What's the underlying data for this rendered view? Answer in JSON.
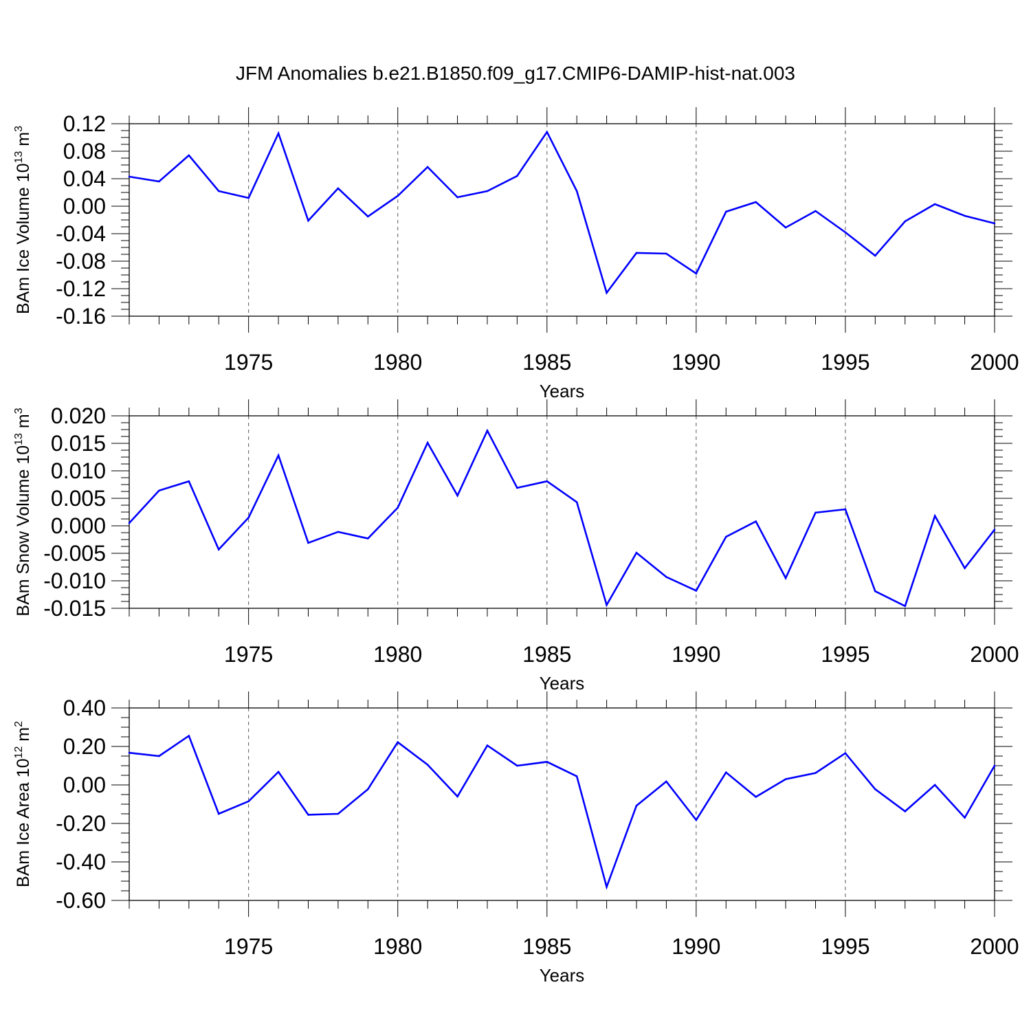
{
  "title": "JFM Anomalies b.e21.B1850.f09_g17.CMIP6-DAMIP-hist-nat.003",
  "colors": {
    "line": "#0000ff",
    "axis": "#000000",
    "grid": "#555555"
  },
  "chart_data": [
    {
      "type": "line",
      "ylabel": {
        "main": "BAm Ice Volume 10",
        "exp": "13",
        "unit": " m",
        "unit_exp": "3"
      },
      "xlabel": "Years",
      "xlim": [
        1971,
        2000
      ],
      "ylim": [
        -0.16,
        0.12
      ],
      "yticks": [
        "0.12",
        "0.08",
        "0.04",
        "0.00",
        "-0.04",
        "-0.08",
        "-0.12",
        "-0.16"
      ],
      "ytick_values": [
        0.12,
        0.08,
        0.04,
        0.0,
        -0.04,
        -0.08,
        -0.12,
        -0.16
      ],
      "xticks": [
        "1975",
        "1980",
        "1985",
        "1990",
        "1995",
        "2000"
      ],
      "xtick_values": [
        1975,
        1980,
        1985,
        1990,
        1995,
        2000
      ],
      "x": [
        1971,
        1972,
        1973,
        1974,
        1975,
        1976,
        1977,
        1978,
        1979,
        1980,
        1981,
        1982,
        1983,
        1984,
        1985,
        1986,
        1987,
        1988,
        1989,
        1990,
        1991,
        1992,
        1993,
        1994,
        1995,
        1996,
        1997,
        1998,
        1999,
        2000
      ],
      "values": [
        0.043,
        0.036,
        0.074,
        0.022,
        0.012,
        0.106,
        -0.021,
        0.026,
        -0.015,
        0.015,
        0.057,
        0.013,
        0.022,
        0.044,
        0.108,
        0.022,
        -0.126,
        -0.068,
        -0.069,
        -0.098,
        -0.008,
        0.006,
        -0.031,
        -0.007,
        -0.038,
        -0.072,
        -0.022,
        0.003,
        -0.014,
        -0.025
      ]
    },
    {
      "type": "line",
      "ylabel": {
        "main": "BAm Snow Volume 10",
        "exp": "13",
        "unit": " m",
        "unit_exp": "3"
      },
      "xlabel": "Years",
      "xlim": [
        1971,
        2000
      ],
      "ylim": [
        -0.015,
        0.02
      ],
      "yticks": [
        "0.020",
        "0.015",
        "0.010",
        "0.005",
        "0.000",
        "-0.005",
        "-0.010",
        "-0.015"
      ],
      "ytick_values": [
        0.02,
        0.015,
        0.01,
        0.005,
        0.0,
        -0.005,
        -0.01,
        -0.015
      ],
      "xticks": [
        "1975",
        "1980",
        "1985",
        "1990",
        "1995",
        "2000"
      ],
      "xtick_values": [
        1975,
        1980,
        1985,
        1990,
        1995,
        2000
      ],
      "x": [
        1971,
        1972,
        1973,
        1974,
        1975,
        1976,
        1977,
        1978,
        1979,
        1980,
        1981,
        1982,
        1983,
        1984,
        1985,
        1986,
        1987,
        1988,
        1989,
        1990,
        1991,
        1992,
        1993,
        1994,
        1995,
        1996,
        1997,
        1998,
        1999,
        2000
      ],
      "values": [
        0.0005,
        0.0064,
        0.0081,
        -0.0043,
        0.0015,
        0.0128,
        -0.0031,
        -0.0011,
        -0.0023,
        0.0033,
        0.0151,
        0.0055,
        0.0173,
        0.0069,
        0.0081,
        0.0043,
        -0.0144,
        -0.0049,
        -0.0093,
        -0.0118,
        -0.002,
        0.0008,
        -0.0095,
        0.0024,
        0.003,
        -0.0119,
        -0.0146,
        0.0018,
        -0.0077,
        -0.0007
      ]
    },
    {
      "type": "line",
      "ylabel": {
        "main": "BAm Ice Area 10",
        "exp": "12",
        "unit": " m",
        "unit_exp": "2"
      },
      "xlabel": "Years",
      "xlim": [
        1971,
        2000
      ],
      "ylim": [
        -0.6,
        0.4
      ],
      "yticks": [
        "0.40",
        "0.20",
        "0.00",
        "-0.20",
        "-0.40",
        "-0.60"
      ],
      "ytick_values": [
        0.4,
        0.2,
        0.0,
        -0.2,
        -0.4,
        -0.6
      ],
      "xticks": [
        "1975",
        "1980",
        "1985",
        "1990",
        "1995",
        "2000"
      ],
      "xtick_values": [
        1975,
        1980,
        1985,
        1990,
        1995,
        2000
      ],
      "x": [
        1971,
        1972,
        1973,
        1974,
        1975,
        1976,
        1977,
        1978,
        1979,
        1980,
        1981,
        1982,
        1983,
        1984,
        1985,
        1986,
        1987,
        1988,
        1989,
        1990,
        1991,
        1992,
        1993,
        1994,
        1995,
        1996,
        1997,
        1998,
        1999,
        2000
      ],
      "values": [
        0.167,
        0.15,
        0.255,
        -0.15,
        -0.085,
        0.068,
        -0.155,
        -0.15,
        -0.022,
        0.222,
        0.105,
        -0.06,
        0.205,
        0.1,
        0.12,
        0.045,
        -0.53,
        -0.108,
        0.018,
        -0.182,
        0.065,
        -0.062,
        0.03,
        0.062,
        0.165,
        -0.022,
        -0.137,
        0.0,
        -0.17,
        0.1
      ]
    }
  ]
}
